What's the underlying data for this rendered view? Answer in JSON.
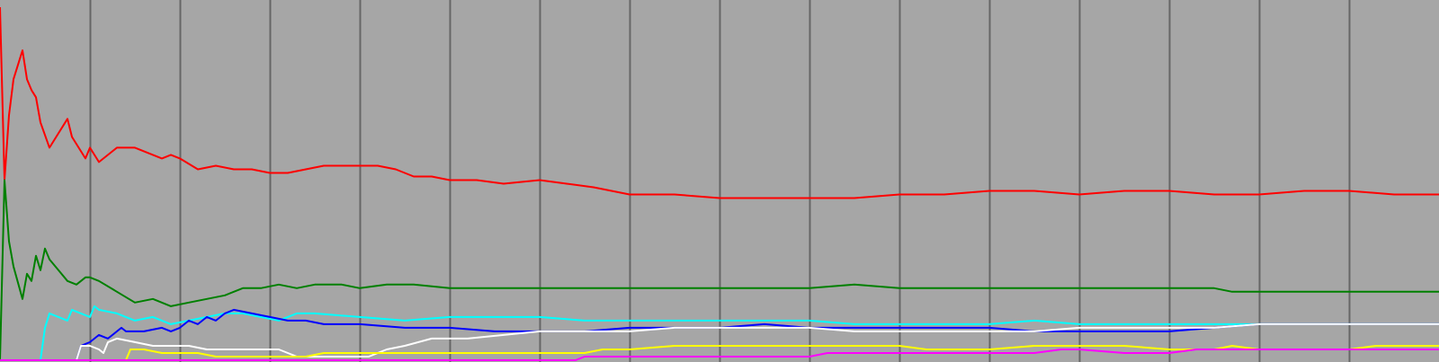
{
  "chart_data": {
    "type": "line",
    "title": "",
    "xlabel": "",
    "ylabel": "",
    "xlim": [
      0,
      16
    ],
    "ylim": [
      0,
      1
    ],
    "grid": "vertical",
    "legend": "none",
    "background": "#a6a6a6",
    "grid_color": "#666666",
    "series": [
      {
        "color": "#ff0000",
        "x": [
          0,
          0.05,
          0.1,
          0.15,
          0.25,
          0.3,
          0.35,
          0.4,
          0.45,
          0.55,
          0.6,
          0.75,
          0.8,
          0.95,
          1.0,
          1.1,
          1.3,
          1.5,
          1.6,
          1.8,
          1.9,
          2.0,
          2.2,
          2.4,
          2.6,
          2.8,
          3.0,
          3.2,
          3.4,
          3.6,
          3.8,
          4.0,
          4.2,
          4.4,
          4.6,
          4.8,
          5.0,
          5.3,
          5.6,
          6.0,
          6.3,
          6.6,
          6.8,
          7.0,
          7.5,
          8.0,
          8.5,
          9.0,
          9.5,
          10.0,
          10.5,
          11.0,
          11.5,
          12.0,
          12.5,
          13.0,
          13.5,
          14.0,
          14.5,
          15.0,
          15.5,
          16.0
        ],
        "values": [
          0.98,
          0.5,
          0.68,
          0.78,
          0.86,
          0.78,
          0.75,
          0.73,
          0.66,
          0.59,
          0.61,
          0.67,
          0.62,
          0.56,
          0.59,
          0.55,
          0.59,
          0.59,
          0.58,
          0.56,
          0.57,
          0.56,
          0.53,
          0.54,
          0.53,
          0.53,
          0.52,
          0.52,
          0.53,
          0.54,
          0.54,
          0.54,
          0.54,
          0.53,
          0.51,
          0.51,
          0.5,
          0.5,
          0.49,
          0.5,
          0.49,
          0.48,
          0.47,
          0.46,
          0.46,
          0.45,
          0.45,
          0.45,
          0.45,
          0.46,
          0.46,
          0.47,
          0.47,
          0.46,
          0.47,
          0.47,
          0.46,
          0.46,
          0.47,
          0.47,
          0.46,
          0.46
        ]
      },
      {
        "color": "#008000",
        "x": [
          0,
          0.05,
          0.1,
          0.15,
          0.25,
          0.3,
          0.35,
          0.4,
          0.45,
          0.5,
          0.55,
          0.65,
          0.75,
          0.85,
          0.95,
          1.0,
          1.1,
          1.3,
          1.5,
          1.7,
          1.9,
          2.1,
          2.3,
          2.5,
          2.7,
          2.9,
          3.1,
          3.3,
          3.5,
          3.8,
          4.0,
          4.3,
          4.6,
          5.0,
          5.5,
          6.0,
          6.5,
          7.0,
          7.5,
          8.0,
          8.5,
          9.0,
          9.5,
          10.0,
          10.5,
          11.0,
          11.5,
          12.0,
          12.5,
          13.0,
          13.5,
          13.7,
          14.0,
          14.5,
          15.0,
          15.5,
          16.0
        ],
        "values": [
          0,
          0.5,
          0.33,
          0.26,
          0.17,
          0.24,
          0.22,
          0.29,
          0.25,
          0.31,
          0.28,
          0.25,
          0.22,
          0.21,
          0.23,
          0.23,
          0.22,
          0.19,
          0.16,
          0.17,
          0.15,
          0.16,
          0.17,
          0.18,
          0.2,
          0.2,
          0.21,
          0.2,
          0.21,
          0.21,
          0.2,
          0.21,
          0.21,
          0.2,
          0.2,
          0.2,
          0.2,
          0.2,
          0.2,
          0.2,
          0.2,
          0.2,
          0.21,
          0.2,
          0.2,
          0.2,
          0.2,
          0.2,
          0.2,
          0.2,
          0.2,
          0.19,
          0.19,
          0.19,
          0.19,
          0.19,
          0.19
        ]
      },
      {
        "color": "#00ffff",
        "x": [
          0,
          0.45,
          0.5,
          0.55,
          0.65,
          0.75,
          0.8,
          0.9,
          1.0,
          1.05,
          1.1,
          1.3,
          1.5,
          1.7,
          1.9,
          2.1,
          2.3,
          2.5,
          2.7,
          2.9,
          3.1,
          3.3,
          3.5,
          4.0,
          4.5,
          5.0,
          5.5,
          6.0,
          6.5,
          7.0,
          7.5,
          8.0,
          8.5,
          9.0,
          9.5,
          10.0,
          10.5,
          11.0,
          11.5,
          12.0,
          12.5,
          13.0,
          13.5,
          14.0,
          14.5,
          15.0,
          15.5,
          16.0
        ],
        "values": [
          0,
          0,
          0.09,
          0.13,
          0.12,
          0.11,
          0.14,
          0.13,
          0.12,
          0.15,
          0.14,
          0.13,
          0.11,
          0.12,
          0.1,
          0.11,
          0.12,
          0.13,
          0.13,
          0.12,
          0.11,
          0.13,
          0.13,
          0.12,
          0.11,
          0.12,
          0.12,
          0.12,
          0.11,
          0.11,
          0.11,
          0.11,
          0.11,
          0.11,
          0.1,
          0.1,
          0.1,
          0.1,
          0.11,
          0.1,
          0.1,
          0.1,
          0.1,
          0.1,
          0.1,
          0.1,
          0.1,
          0.1
        ]
      },
      {
        "color": "#0000ff",
        "x": [
          0,
          0.85,
          0.9,
          1.0,
          1.05,
          1.1,
          1.2,
          1.3,
          1.35,
          1.4,
          1.6,
          1.8,
          1.9,
          2.0,
          2.1,
          2.2,
          2.3,
          2.4,
          2.5,
          2.6,
          2.8,
          3.0,
          3.2,
          3.4,
          3.6,
          3.8,
          4.0,
          4.5,
          5.0,
          5.5,
          6.0,
          6.5,
          7.0,
          7.5,
          8.0,
          8.5,
          9.0,
          9.5,
          10.0,
          10.5,
          11.0,
          11.5,
          12.0,
          12.5,
          13.0,
          13.5,
          14.0,
          14.5,
          15.0,
          15.5,
          16.0
        ],
        "values": [
          0,
          0,
          0.04,
          0.05,
          0.06,
          0.07,
          0.06,
          0.08,
          0.09,
          0.08,
          0.08,
          0.09,
          0.08,
          0.09,
          0.11,
          0.1,
          0.12,
          0.11,
          0.13,
          0.14,
          0.13,
          0.12,
          0.11,
          0.11,
          0.1,
          0.1,
          0.1,
          0.09,
          0.09,
          0.08,
          0.08,
          0.08,
          0.09,
          0.09,
          0.09,
          0.1,
          0.09,
          0.09,
          0.09,
          0.09,
          0.09,
          0.08,
          0.08,
          0.08,
          0.08,
          0.09,
          0.1,
          0.1,
          0.1,
          0.1,
          0.1
        ]
      },
      {
        "color": "#ffffff",
        "x": [
          0,
          0.85,
          0.9,
          1.0,
          1.1,
          1.15,
          1.2,
          1.3,
          1.5,
          1.7,
          1.9,
          2.1,
          2.3,
          2.5,
          2.7,
          2.9,
          3.1,
          3.3,
          3.5,
          3.8,
          4.1,
          4.2,
          4.3,
          4.5,
          4.8,
          5.2,
          5.6,
          6.0,
          6.5,
          7.0,
          7.5,
          8.0,
          8.5,
          9.0,
          9.5,
          10.0,
          10.5,
          11.0,
          11.5,
          12.0,
          12.5,
          13.0,
          13.5,
          14.0,
          14.5,
          15.0,
          15.5,
          16.0
        ],
        "values": [
          0,
          0,
          0.04,
          0.04,
          0.03,
          0.02,
          0.05,
          0.06,
          0.05,
          0.04,
          0.04,
          0.04,
          0.03,
          0.03,
          0.03,
          0.03,
          0.03,
          0.01,
          0.01,
          0.01,
          0.01,
          0.02,
          0.03,
          0.04,
          0.06,
          0.06,
          0.07,
          0.08,
          0.08,
          0.08,
          0.09,
          0.09,
          0.09,
          0.09,
          0.08,
          0.08,
          0.08,
          0.08,
          0.08,
          0.09,
          0.09,
          0.09,
          0.09,
          0.1,
          0.1,
          0.1,
          0.1,
          0.1
        ]
      },
      {
        "color": "#ffff00",
        "x": [
          0,
          1.4,
          1.45,
          1.6,
          1.8,
          2.0,
          2.2,
          2.4,
          2.6,
          2.8,
          3.0,
          3.2,
          3.4,
          3.6,
          3.8,
          4.0,
          4.5,
          5.0,
          5.5,
          6.0,
          6.5,
          6.7,
          7.0,
          7.5,
          8.0,
          8.5,
          9.0,
          9.5,
          10.0,
          10.3,
          10.5,
          11.0,
          11.5,
          12.0,
          12.5,
          13.0,
          13.5,
          13.7,
          14.0,
          14.5,
          15.0,
          15.3,
          15.5,
          16.0
        ],
        "values": [
          0,
          0,
          0.03,
          0.03,
          0.02,
          0.02,
          0.02,
          0.01,
          0.01,
          0.01,
          0.01,
          0.01,
          0.01,
          0.02,
          0.02,
          0.02,
          0.02,
          0.02,
          0.02,
          0.02,
          0.02,
          0.03,
          0.03,
          0.04,
          0.04,
          0.04,
          0.04,
          0.04,
          0.04,
          0.03,
          0.03,
          0.03,
          0.04,
          0.04,
          0.04,
          0.03,
          0.03,
          0.04,
          0.03,
          0.03,
          0.03,
          0.04,
          0.04,
          0.04
        ]
      },
      {
        "color": "#ff00ff",
        "x": [
          0,
          6.4,
          6.5,
          7.0,
          7.5,
          8.0,
          8.5,
          9.0,
          9.2,
          9.5,
          10.0,
          10.5,
          11.0,
          11.5,
          11.8,
          12.0,
          12.5,
          13.0,
          13.3,
          13.5,
          14.0,
          14.5,
          15.0,
          15.5,
          16.0
        ],
        "values": [
          0,
          0,
          0.01,
          0.01,
          0.01,
          0.01,
          0.01,
          0.01,
          0.02,
          0.02,
          0.02,
          0.02,
          0.02,
          0.02,
          0.03,
          0.03,
          0.02,
          0.02,
          0.03,
          0.03,
          0.03,
          0.03,
          0.03,
          0.03,
          0.03
        ]
      }
    ]
  }
}
